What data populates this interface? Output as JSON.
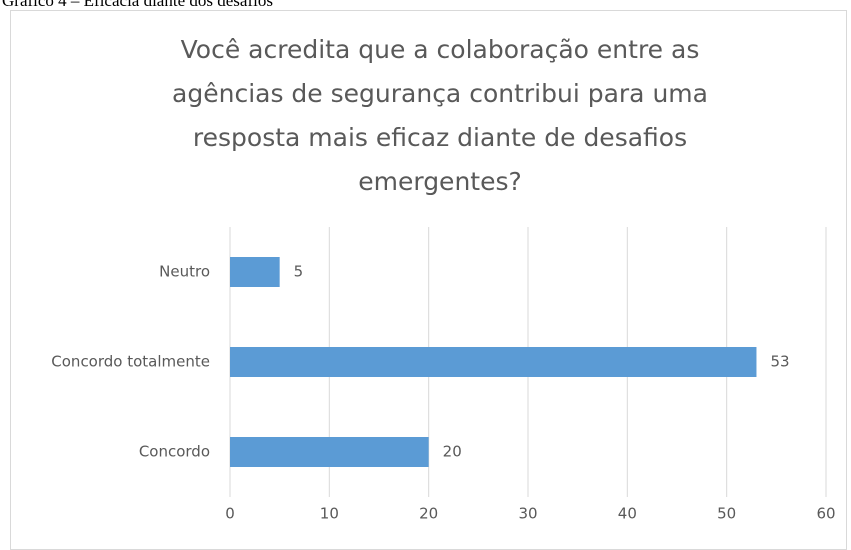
{
  "caption": "Gráfico 4 – Eficácia diante dos desafios",
  "chart_data": {
    "type": "bar",
    "orientation": "horizontal",
    "title": "Você acredita que a colaboração entre as agências de segurança contribui para uma resposta mais eficaz diante de desafios emergentes?",
    "categories": [
      "Neutro",
      "Concordo totalmente",
      "Concordo"
    ],
    "values": [
      5,
      53,
      20
    ],
    "color": "#5b9bd5",
    "xlim": [
      0,
      60
    ],
    "xticks": [
      0,
      10,
      20,
      30,
      40,
      50,
      60
    ],
    "grid": true
  }
}
